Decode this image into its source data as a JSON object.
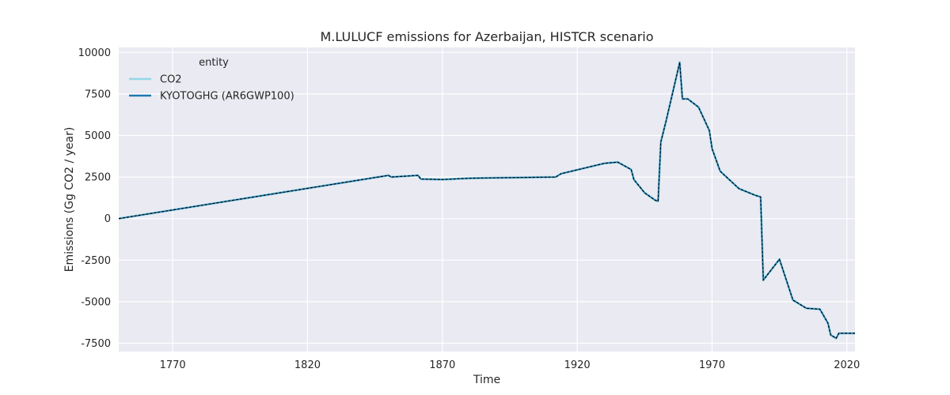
{
  "chart_data": {
    "type": "line",
    "title": "M.LULUCF emissions for Azerbaijan, HISTCR scenario",
    "xlabel": "Time",
    "ylabel": "Emissions (Gg CO2 / year)",
    "xlim": [
      1750,
      2023
    ],
    "ylim": [
      -8000,
      10300
    ],
    "xticks": [
      1770,
      1820,
      1870,
      1920,
      1970,
      2020
    ],
    "yticks": [
      -7500,
      -5000,
      -2500,
      0,
      2500,
      5000,
      7500,
      10000
    ],
    "grid": true,
    "legend": {
      "title": "entity",
      "placement": "top-left"
    },
    "series": [
      {
        "name": "CO2",
        "color": "#94d7e6",
        "style": "solid",
        "points": [
          [
            1750,
            0
          ],
          [
            1850,
            2600
          ],
          [
            1851,
            2500
          ],
          [
            1861,
            2600
          ],
          [
            1862,
            2380
          ],
          [
            1870,
            2350
          ],
          [
            1880,
            2430
          ],
          [
            1912,
            2500
          ],
          [
            1914,
            2700
          ],
          [
            1930,
            3320
          ],
          [
            1935,
            3400
          ],
          [
            1940,
            2950
          ],
          [
            1941,
            2350
          ],
          [
            1945,
            1550
          ],
          [
            1949,
            1100
          ],
          [
            1950,
            1050
          ],
          [
            1951,
            4600
          ],
          [
            1953,
            5900
          ],
          [
            1958,
            9400
          ],
          [
            1959,
            7200
          ],
          [
            1961,
            7200
          ],
          [
            1965,
            6700
          ],
          [
            1969,
            5300
          ],
          [
            1970,
            4200
          ],
          [
            1973,
            2850
          ],
          [
            1976,
            2400
          ],
          [
            1980,
            1800
          ],
          [
            1986,
            1400
          ],
          [
            1988,
            1300
          ],
          [
            1989,
            -3700
          ],
          [
            1995,
            -2450
          ],
          [
            2000,
            -4900
          ],
          [
            2005,
            -5400
          ],
          [
            2010,
            -5450
          ],
          [
            2013,
            -6300
          ],
          [
            2014,
            -7000
          ],
          [
            2016,
            -7200
          ],
          [
            2017,
            -6900
          ],
          [
            2023,
            -6900
          ]
        ]
      },
      {
        "name": "KYOTOGHG (AR6GWP100)",
        "color": "#1f77b4",
        "style": "solid",
        "points": [
          [
            1750,
            0
          ],
          [
            1850,
            2600
          ],
          [
            1851,
            2500
          ],
          [
            1861,
            2600
          ],
          [
            1862,
            2380
          ],
          [
            1870,
            2350
          ],
          [
            1880,
            2430
          ],
          [
            1912,
            2500
          ],
          [
            1914,
            2700
          ],
          [
            1930,
            3320
          ],
          [
            1935,
            3400
          ],
          [
            1940,
            2950
          ],
          [
            1941,
            2350
          ],
          [
            1945,
            1550
          ],
          [
            1949,
            1100
          ],
          [
            1950,
            1050
          ],
          [
            1951,
            4600
          ],
          [
            1953,
            5900
          ],
          [
            1958,
            9400
          ],
          [
            1959,
            7200
          ],
          [
            1961,
            7200
          ],
          [
            1965,
            6700
          ],
          [
            1969,
            5300
          ],
          [
            1970,
            4200
          ],
          [
            1973,
            2850
          ],
          [
            1976,
            2400
          ],
          [
            1980,
            1800
          ],
          [
            1986,
            1400
          ],
          [
            1988,
            1300
          ],
          [
            1989,
            -3700
          ],
          [
            1995,
            -2450
          ],
          [
            2000,
            -4900
          ],
          [
            2005,
            -5400
          ],
          [
            2010,
            -5450
          ],
          [
            2013,
            -6300
          ],
          [
            2014,
            -7000
          ],
          [
            2016,
            -7200
          ],
          [
            2017,
            -6900
          ],
          [
            2023,
            -6900
          ]
        ]
      }
    ]
  }
}
